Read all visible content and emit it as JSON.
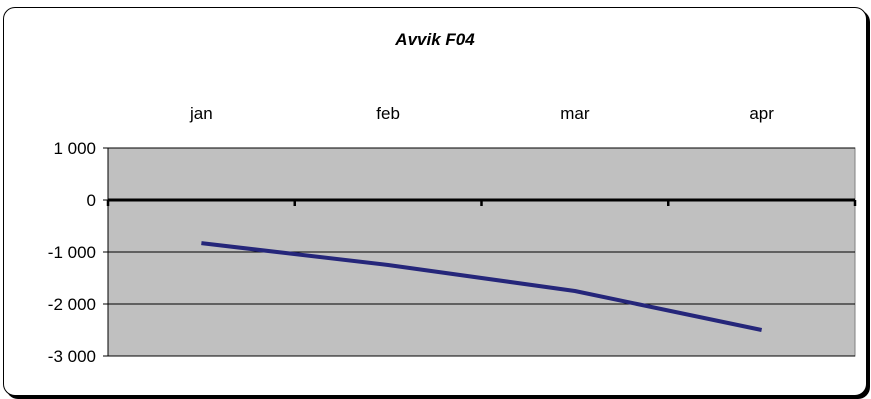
{
  "chart_data": {
    "type": "line",
    "title": "Avvik F04",
    "categories": [
      "jan",
      "feb",
      "mar",
      "apr"
    ],
    "series": [
      {
        "values": [
          -830,
          -1250,
          -1750,
          -2500
        ]
      }
    ],
    "xlabel": "",
    "ylabel": "",
    "ylim": [
      -3000,
      1000
    ],
    "yticks": [
      1000,
      0,
      -1000,
      -2000,
      -3000
    ],
    "ytick_labels": [
      "1 000",
      "0",
      "-1 000",
      "-2 000",
      "-3 000"
    ],
    "grid": true,
    "category_labels_position": "top",
    "colors": {
      "plot_background": "#c0c0c0",
      "line": "#25267a",
      "zero_line": "#000000",
      "gridline": "#000000"
    }
  }
}
